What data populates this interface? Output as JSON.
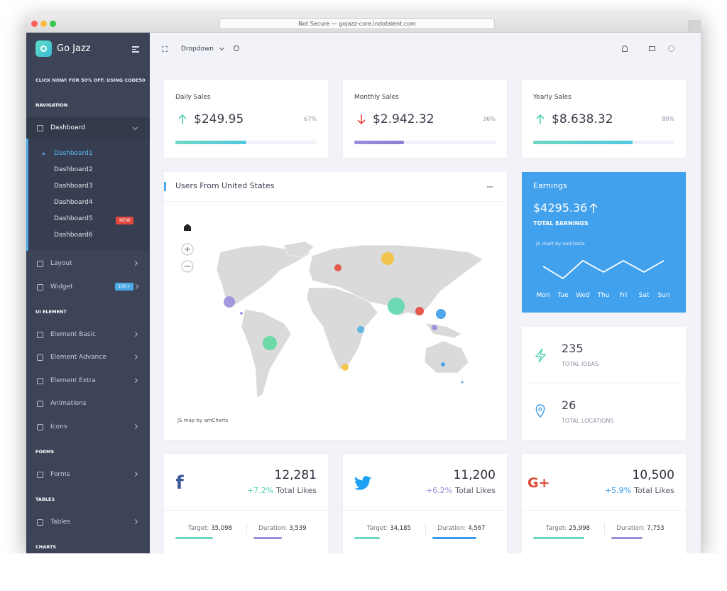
{
  "browser": {
    "address": "Not Secure — gojazz-core.indotalent.com"
  },
  "sidebar": {
    "brand": "Go Jazz",
    "promo": "CLICK NOW! FOR 50% OFF, USING CODE50",
    "groups": [
      {
        "heading": "NAVIGATION",
        "items": [
          {
            "label": "Dashboard",
            "active": true,
            "children": [
              {
                "label": "Dashboard1",
                "active": true
              },
              {
                "label": "Dashboard2"
              },
              {
                "label": "Dashboard3"
              },
              {
                "label": "Dashboard4"
              },
              {
                "label": "Dashboard5",
                "badge": "NEW"
              },
              {
                "label": "Dashboard6"
              }
            ]
          },
          {
            "label": "Layout"
          },
          {
            "label": "Widget",
            "badge": "100+"
          }
        ]
      },
      {
        "heading": "UI ELEMENT",
        "items": [
          {
            "label": "Element Basic"
          },
          {
            "label": "Element Advance"
          },
          {
            "label": "Element Extra"
          },
          {
            "label": "Animations",
            "arrow": false
          },
          {
            "label": "Icons"
          }
        ]
      },
      {
        "heading": "FORMS",
        "items": [
          {
            "label": "Forms"
          }
        ]
      },
      {
        "heading": "TABLES",
        "items": [
          {
            "label": "Tables"
          }
        ]
      },
      {
        "heading": "CHARTS"
      }
    ]
  },
  "topbar": {
    "menu": "Dropdown"
  },
  "stats": [
    {
      "title": "Daily Sales",
      "value": "$249.95",
      "trend": "up",
      "percent": "67%"
    },
    {
      "title": "Monthly Sales",
      "value": "$2.942.32",
      "trend": "down",
      "percent": "36%"
    },
    {
      "title": "Yearly Sales",
      "value": "$8.638.32",
      "trend": "up",
      "percent": "80%"
    }
  ],
  "map_card": {
    "title": "Users From United States",
    "credit": "JS map by amCharts"
  },
  "earnings": {
    "title": "Earnings",
    "value": "$4295.36",
    "label": "TOTAL EARNINGS",
    "credit": "JS chart by amCharts",
    "days": [
      "Mon",
      "Tue",
      "Wed",
      "Thu",
      "Fri",
      "Sat",
      "Sun"
    ]
  },
  "info": [
    {
      "value": "235",
      "label": "TOTAL IDEAS"
    },
    {
      "value": "26",
      "label": "TOTAL LOCATIONS"
    }
  ],
  "social": [
    {
      "icon": "f",
      "likes": "12,281",
      "change": "+7.2%",
      "likes_label": "Total Likes",
      "target_label": "Target:",
      "target": "35,098",
      "duration_label": "Duration:",
      "duration": "3,539"
    },
    {
      "likes": "11,200",
      "change": "+6.2%",
      "likes_label": "Total Likes",
      "target_label": "Target:",
      "target": "34,185",
      "duration_label": "Duration:",
      "duration": "4,567"
    },
    {
      "icon": "G+",
      "likes": "10,500",
      "change": "+5.9%",
      "likes_label": "Total Likes",
      "target_label": "Target:",
      "target": "25,998",
      "duration_label": "Duration:",
      "duration": "7,753"
    }
  ]
}
